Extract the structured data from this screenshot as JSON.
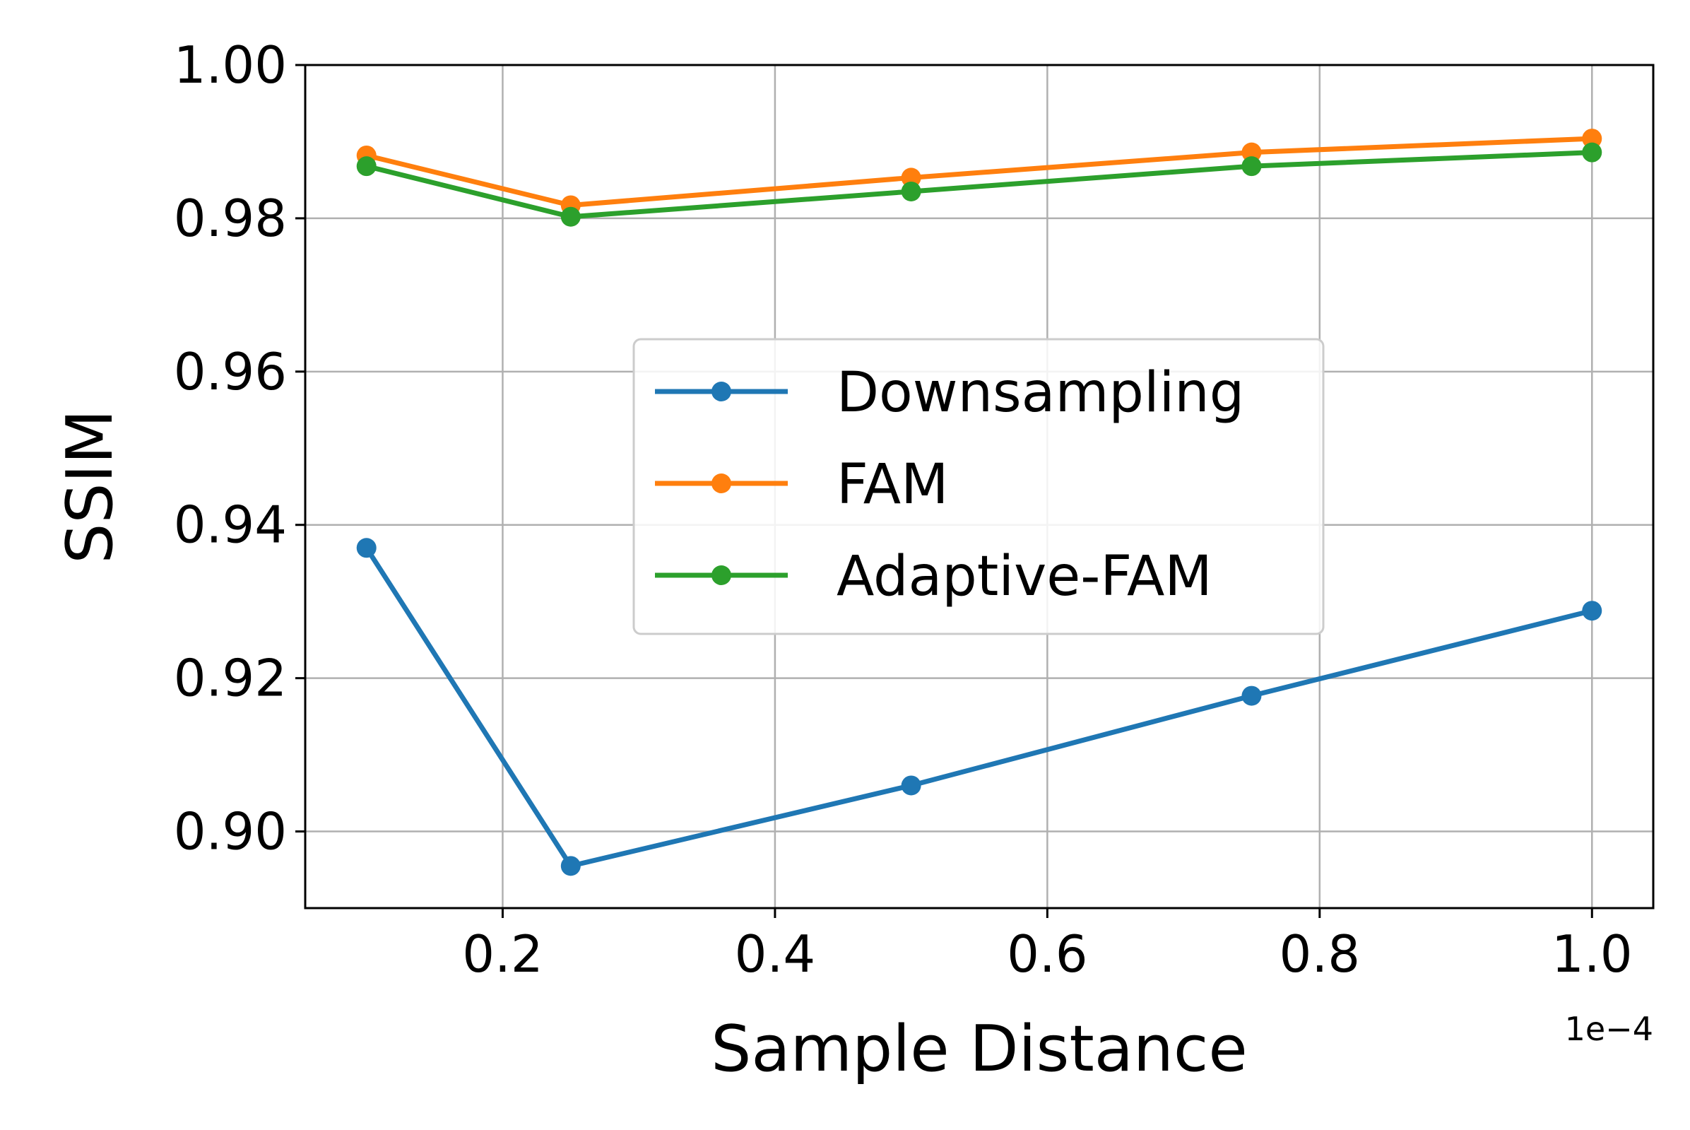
{
  "chart_data": {
    "type": "line",
    "title": "",
    "xlabel": "Sample Distance",
    "ylabel": "SSIM",
    "x_offset_label": "1e−4",
    "x": [
      0.1,
      0.25,
      0.5,
      0.75,
      1.0
    ],
    "xlim": [
      0.055,
      1.045
    ],
    "ylim": [
      0.89,
      1.0
    ],
    "x_ticks": [
      0.2,
      0.4,
      0.6,
      0.8,
      1.0
    ],
    "x_tick_labels": [
      "0.2",
      "0.4",
      "0.6",
      "0.8",
      "1.0"
    ],
    "y_ticks": [
      0.9,
      0.92,
      0.94,
      0.96,
      0.98,
      1.0
    ],
    "y_tick_labels": [
      "0.90",
      "0.92",
      "0.94",
      "0.96",
      "0.98",
      "1.00"
    ],
    "grid": true,
    "legend_position": "center",
    "series": [
      {
        "name": "Downsampling",
        "color": "#1f77b4",
        "values": [
          0.937,
          0.8955,
          0.906,
          0.9177,
          0.9288
        ]
      },
      {
        "name": "FAM",
        "color": "#ff7f0e",
        "values": [
          0.9882,
          0.9817,
          0.9853,
          0.9886,
          0.9904
        ]
      },
      {
        "name": "Adaptive-FAM",
        "color": "#2ca02c",
        "values": [
          0.9868,
          0.9802,
          0.9835,
          0.9868,
          0.9886
        ]
      }
    ]
  }
}
